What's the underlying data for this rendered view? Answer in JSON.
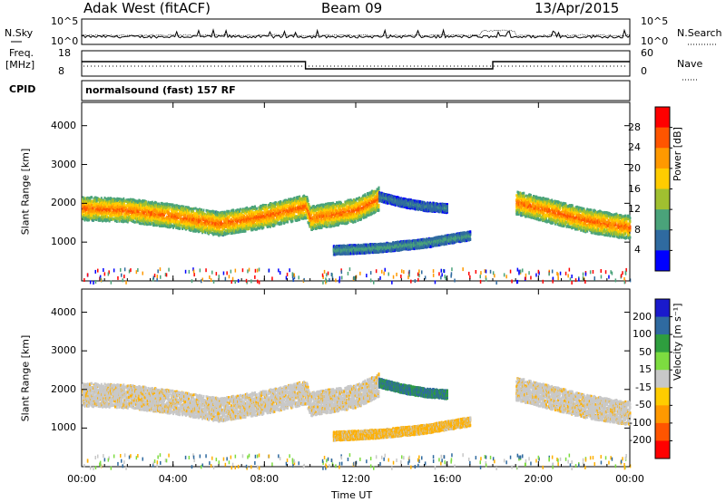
{
  "header": {
    "title": "Adak West (fitACF)",
    "beam": "Beam 09",
    "date": "13/Apr/2015"
  },
  "panels": {
    "noise": {
      "left_label": "N.Sky",
      "right_label": "N.Search",
      "left_ticks": [
        "10^5",
        "10^0"
      ],
      "right_ticks": [
        "10^5",
        "10^0"
      ]
    },
    "freq": {
      "left_label_1": "Freq.",
      "left_label_2": "[MHz]",
      "left_ticks": [
        "18",
        "8"
      ],
      "right_label": "Nave",
      "right_ticks": [
        "60",
        "0"
      ]
    },
    "cpid": {
      "label": "CPID",
      "text": "normalsound (fast) 157 RF"
    },
    "power": {
      "ylabel": "Slant Range [km]",
      "cbar_label": "Power [dB]",
      "cbar_ticks": [
        "28",
        "24",
        "20",
        "16",
        "12",
        "8",
        "4"
      ],
      "cbar_colors": [
        "#ff0000",
        "#ff5500",
        "#ff9900",
        "#ffcc00",
        "#a0c030",
        "#4aa37a",
        "#2f6aa0",
        "#0000ff"
      ]
    },
    "velocity": {
      "ylabel": "Slant Range [km]",
      "cbar_label": "Velocity [m s⁻¹]",
      "cbar_ticks": [
        "200",
        "100",
        "50",
        "15",
        "-15",
        "-50",
        "-100",
        "-200"
      ],
      "cbar_colors": [
        "#1a1acc",
        "#2f6aa0",
        "#2e9e3e",
        "#7ddc40",
        "#c8c8c8",
        "#ffcc00",
        "#ff9900",
        "#ff5500",
        "#ff0000"
      ]
    }
  },
  "x_axis": {
    "label": "Time UT",
    "ticks": [
      "00:00",
      "04:00",
      "08:00",
      "12:00",
      "16:00",
      "20:00",
      "00:00"
    ]
  },
  "chart_data": {
    "type": "heatmap",
    "x_unit": "hours UT",
    "xlim": [
      0,
      24
    ],
    "ylim": [
      0,
      4600
    ],
    "y_ticks": [
      1000,
      2000,
      3000,
      4000
    ],
    "frequency_steps": [
      {
        "start": 0,
        "end": 9.8,
        "mhz": 14
      },
      {
        "start": 9.8,
        "end": 18.0,
        "mhz": 10
      },
      {
        "start": 18.0,
        "end": 24,
        "mhz": 14
      }
    ],
    "scatter_bands": [
      {
        "name": "main-echo",
        "points": [
          [
            0,
            1900
          ],
          [
            2,
            1850
          ],
          [
            4,
            1700
          ],
          [
            6,
            1500
          ],
          [
            8,
            1700
          ],
          [
            9.8,
            1950
          ],
          [
            10,
            1650
          ],
          [
            12,
            1850
          ],
          [
            13,
            2150
          ]
        ],
        "power_db": 22
      },
      {
        "name": "evening-echo",
        "points": [
          [
            19,
            2050
          ],
          [
            20,
            1900
          ],
          [
            22,
            1600
          ],
          [
            24,
            1400
          ]
        ],
        "power_db": 22
      },
      {
        "name": "low-band",
        "points": [
          [
            11,
            820
          ],
          [
            13,
            880
          ],
          [
            15,
            1000
          ],
          [
            17,
            1200
          ]
        ],
        "power_db": 8
      },
      {
        "name": "upper-patch",
        "points": [
          [
            13,
            2200
          ],
          [
            14,
            2050
          ],
          [
            15,
            1950
          ],
          [
            16,
            1900
          ]
        ],
        "power_db": 6
      }
    ]
  }
}
